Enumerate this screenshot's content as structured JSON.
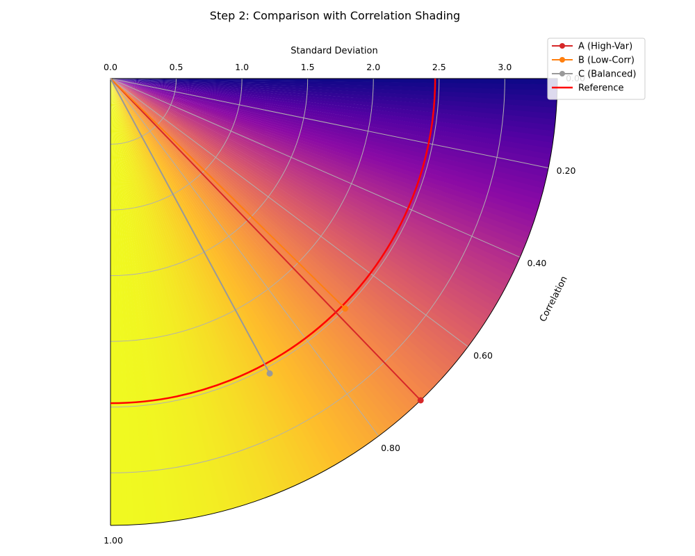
{
  "chart_data": {
    "type": "scatter",
    "title": "Step 2: Comparison with Correlation Shading",
    "std_axis_label": "Standard Deviation",
    "corr_axis_label": "Correlation",
    "std_range": [
      0,
      3.4
    ],
    "std_ticks": [
      "0.0",
      "0.5",
      "1.0",
      "1.5",
      "2.0",
      "2.5",
      "3.0"
    ],
    "corr_ticks": [
      "0.00",
      "0.20",
      "0.40",
      "0.60",
      "0.80",
      "1.00"
    ],
    "grid": true,
    "legend_position": "top-right",
    "colormap": "plasma",
    "reference": {
      "name": "Reference",
      "std": 2.47,
      "color": "#ff0000"
    },
    "series": [
      {
        "name": "A (High-Var)",
        "std": 3.4,
        "corr": 0.72,
        "color": "#d62728"
      },
      {
        "name": "B (Low-Corr)",
        "std": 2.5,
        "corr": 0.7,
        "color": "#ff7f0e"
      },
      {
        "name": "C (Balanced)",
        "std": 2.55,
        "corr": 0.88,
        "color": "#999999"
      }
    ]
  }
}
